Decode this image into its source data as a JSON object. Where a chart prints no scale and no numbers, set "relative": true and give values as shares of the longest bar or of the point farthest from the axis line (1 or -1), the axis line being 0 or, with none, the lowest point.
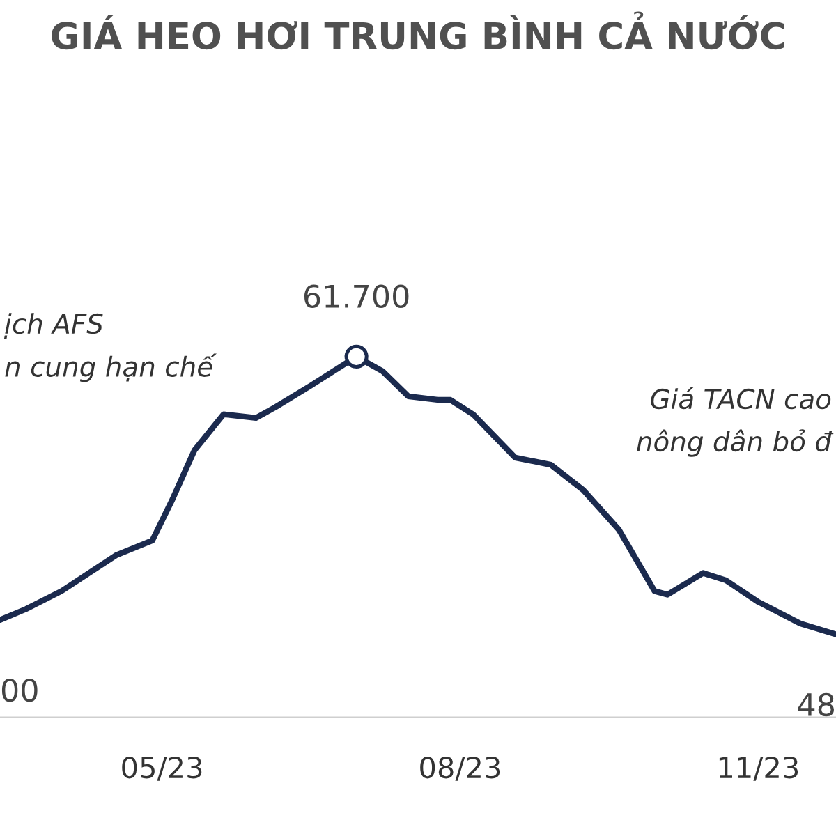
{
  "chart_data": {
    "type": "line",
    "title": "GIÁ HEO HƠI TRUNG BÌNH CẢ NƯỚC",
    "relative": true,
    "xlim": [
      "2023-03-12",
      "2023-11-25"
    ],
    "xticks": [
      {
        "value": "2023-05-01",
        "label": "05/23"
      },
      {
        "value": "2023-08-01",
        "label": "08/23"
      },
      {
        "value": "2023-11-01",
        "label": "11/23"
      }
    ],
    "grid": false,
    "legend": false,
    "series": [
      {
        "color": "#1b2a4e",
        "x": [
          "2023-03-12",
          "2023-03-20",
          "2023-03-31",
          "2023-04-17",
          "2023-04-28",
          "2023-05-04",
          "2023-05-11",
          "2023-05-20",
          "2023-05-30",
          "2023-06-05",
          "2023-06-16",
          "2023-06-30",
          "2023-07-08",
          "2023-07-16",
          "2023-07-25",
          "2023-07-29",
          "2023-08-05",
          "2023-08-18",
          "2023-08-29",
          "2023-09-08",
          "2023-09-19",
          "2023-09-30",
          "2023-10-04",
          "2023-10-15",
          "2023-10-22",
          "2023-11-01",
          "2023-11-14",
          "2023-11-25"
        ],
        "values": [
          0.27,
          0.3,
          0.35,
          0.45,
          0.49,
          0.6,
          0.74,
          0.84,
          0.83,
          0.86,
          0.92,
          1,
          0.96,
          0.89,
          0.88,
          0.88,
          0.84,
          0.72,
          0.7,
          0.63,
          0.52,
          0.35,
          0.34,
          0.4,
          0.38,
          0.32,
          0.26,
          0.23
        ],
        "line_style": "solid"
      },
      {
        "type": "scatter",
        "color": "#1b2a4e",
        "x": [
          "2023-06-30"
        ],
        "values": [
          1
        ],
        "marker": "circle"
      }
    ],
    "annotations": [
      {
        "text": "61.700",
        "x": "2023-06-30",
        "y": 1
      },
      {
        "text": "00",
        "x": "2023-03-12",
        "y": 0.27
      },
      {
        "text": "48",
        "x": "2023-11-25",
        "y": 0.23
      },
      "ịch AFS",
      "n cung hạn chế",
      "Giá TACN cao",
      "nông dân bỏ đ"
    ]
  }
}
